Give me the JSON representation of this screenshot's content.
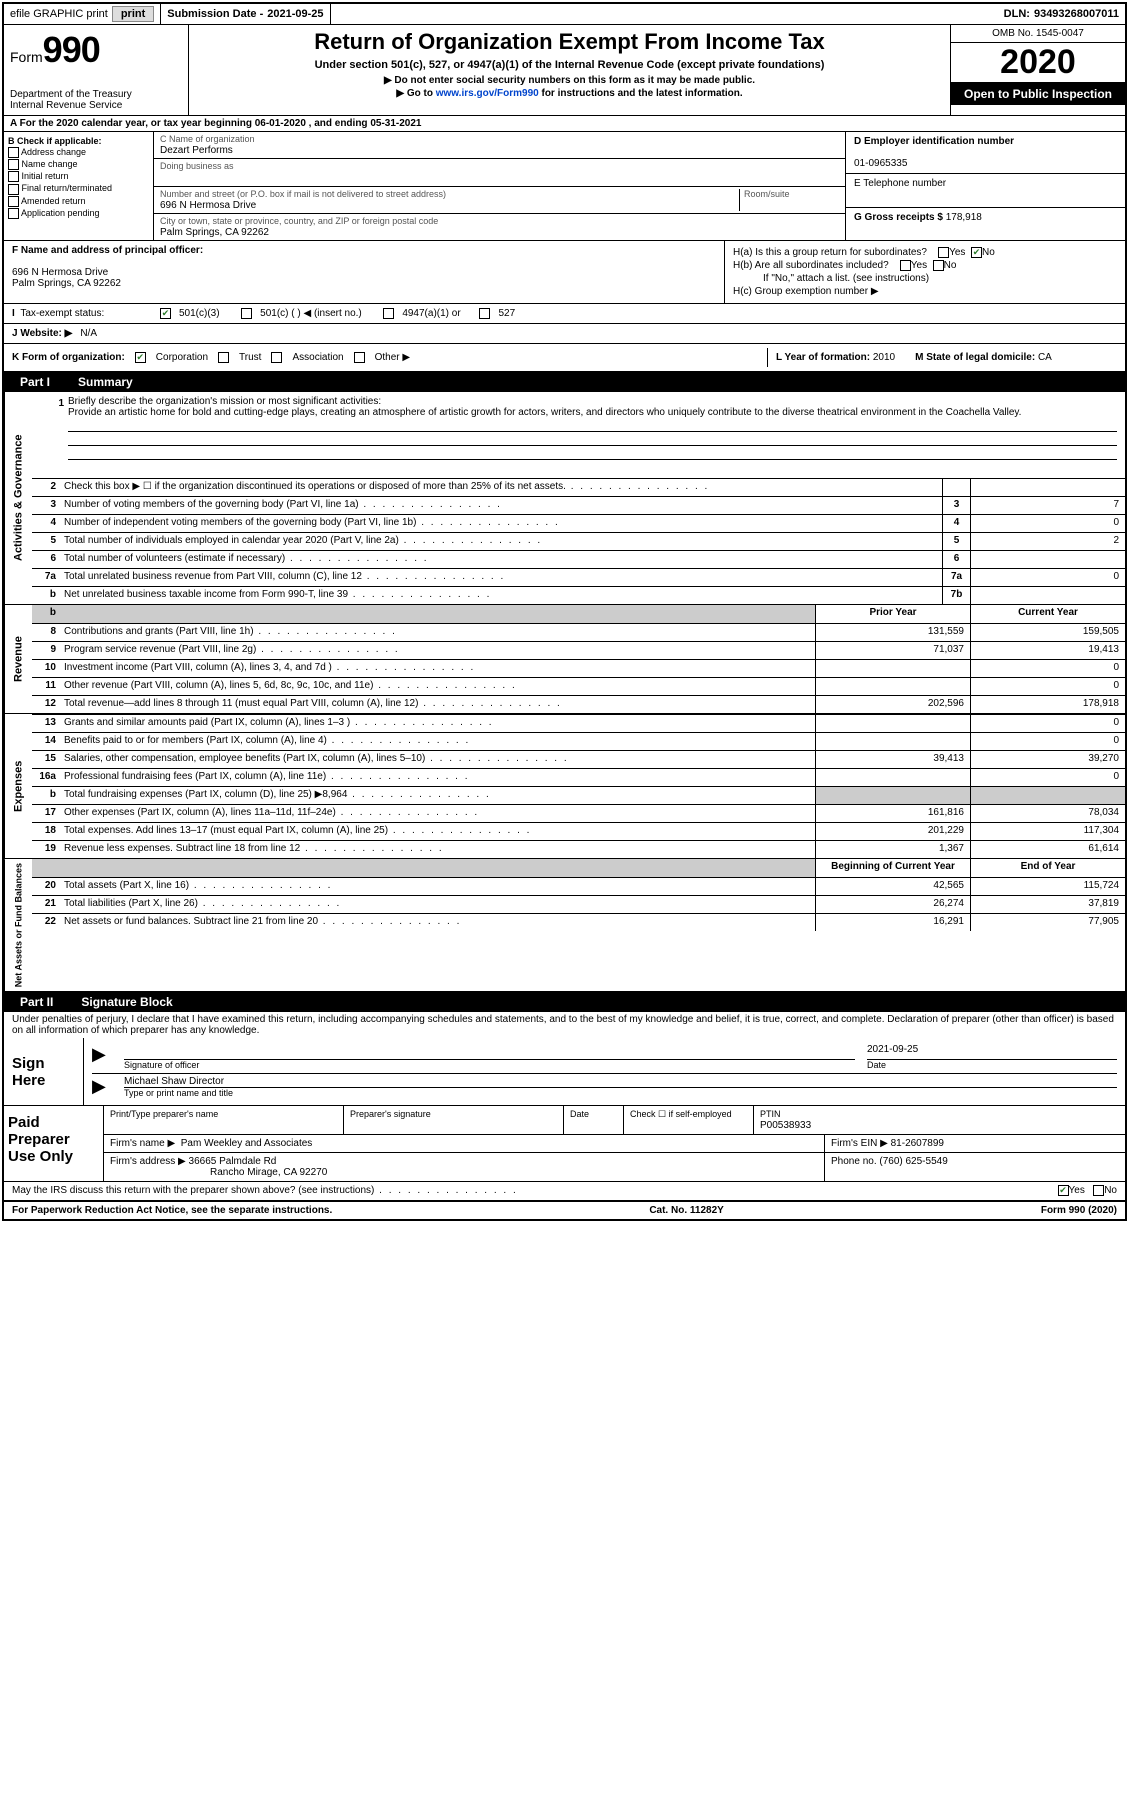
{
  "topbar": {
    "efile": "efile GRAPHIC print",
    "submission_label": "Submission Date - ",
    "submission_date": "2021-09-25",
    "dln_label": "DLN: ",
    "dln": "93493268007011"
  },
  "header": {
    "form_prefix": "Form",
    "form_number": "990",
    "dept": "Department of the Treasury\nInternal Revenue Service",
    "title": "Return of Organization Exempt From Income Tax",
    "subtitle": "Under section 501(c), 527, or 4947(a)(1) of the Internal Revenue Code (except private foundations)",
    "instr1": "▶ Do not enter social security numbers on this form as it may be made public.",
    "instr2_pre": "▶ Go to ",
    "instr2_link": "www.irs.gov/Form990",
    "instr2_post": " for instructions and the latest information.",
    "omb": "OMB No. 1545-0047",
    "tax_year": "2020",
    "inspection": "Open to Public Inspection"
  },
  "row_a": "A For the 2020 calendar year, or tax year beginning 06-01-2020    , and ending 05-31-2021",
  "section_b": {
    "header": "B Check if applicable:",
    "opts": [
      "Address change",
      "Name change",
      "Initial return",
      "Final return/terminated",
      "Amended return",
      "Application pending"
    ]
  },
  "section_c": {
    "name_label": "C Name of organization",
    "name": "Dezart Performs",
    "dba_label": "Doing business as",
    "addr_label": "Number and street (or P.O. box if mail is not delivered to street address)",
    "room_label": "Room/suite",
    "addr": "696 N Hermosa Drive",
    "city_label": "City or town, state or province, country, and ZIP or foreign postal code",
    "city": "Palm Springs, CA  92262"
  },
  "section_d": {
    "label": "D Employer identification number",
    "value": "01-0965335"
  },
  "section_e": {
    "label": "E Telephone number",
    "value": ""
  },
  "section_g": {
    "label": "G Gross receipts $ ",
    "value": "178,918"
  },
  "section_f": {
    "label": "F  Name and address of principal officer:",
    "addr1": "696 N Hermosa Drive",
    "addr2": "Palm Springs, CA  92262"
  },
  "section_h": {
    "a": "H(a)  Is this a group return for subordinates?",
    "b": "H(b)  Are all subordinates included?",
    "b_note": "If \"No,\" attach a list. (see instructions)",
    "c": "H(c)  Group exemption number ▶"
  },
  "tax_status": {
    "label": "Tax-exempt status:",
    "o1": "501(c)(3)",
    "o2": "501(c) (  ) ◀ (insert no.)",
    "o3": "4947(a)(1) or",
    "o4": "527"
  },
  "website": {
    "label": "J   Website: ▶",
    "value": "N/A"
  },
  "row_k": {
    "k": "K Form of organization:",
    "opts": [
      "Corporation",
      "Trust",
      "Association",
      "Other ▶"
    ],
    "l_label": "L Year of formation: ",
    "l_value": "2010",
    "m_label": "M State of legal domicile: ",
    "m_value": "CA"
  },
  "part1": {
    "label": "Part I",
    "title": "Summary"
  },
  "mission": {
    "num": "1",
    "label": "Briefly describe the organization's mission or most significant activities:",
    "text": "Provide an artistic home for bold and cutting-edge plays, creating an atmosphere of artistic growth for actors, writers, and directors who uniquely contribute to the diverse theatrical environment in the Coachella Valley."
  },
  "governance": {
    "side": "Activities & Governance",
    "rows": [
      {
        "n": "2",
        "label": "Check this box ▶ ☐  if the organization discontinued its operations or disposed of more than 25% of its net assets.",
        "box": "",
        "val": ""
      },
      {
        "n": "3",
        "label": "Number of voting members of the governing body (Part VI, line 1a)",
        "box": "3",
        "val": "7"
      },
      {
        "n": "4",
        "label": "Number of independent voting members of the governing body (Part VI, line 1b)",
        "box": "4",
        "val": "0"
      },
      {
        "n": "5",
        "label": "Total number of individuals employed in calendar year 2020 (Part V, line 2a)",
        "box": "5",
        "val": "2"
      },
      {
        "n": "6",
        "label": "Total number of volunteers (estimate if necessary)",
        "box": "6",
        "val": ""
      },
      {
        "n": "7a",
        "label": "Total unrelated business revenue from Part VIII, column (C), line 12",
        "box": "7a",
        "val": "0"
      },
      {
        "n": "b",
        "label": "Net unrelated business taxable income from Form 990-T, line 39",
        "box": "7b",
        "val": ""
      }
    ]
  },
  "revenue": {
    "side": "Revenue",
    "header": {
      "prior": "Prior Year",
      "curr": "Current Year"
    },
    "rows": [
      {
        "n": "8",
        "label": "Contributions and grants (Part VIII, line 1h)",
        "prior": "131,559",
        "curr": "159,505"
      },
      {
        "n": "9",
        "label": "Program service revenue (Part VIII, line 2g)",
        "prior": "71,037",
        "curr": "19,413"
      },
      {
        "n": "10",
        "label": "Investment income (Part VIII, column (A), lines 3, 4, and 7d )",
        "prior": "",
        "curr": "0"
      },
      {
        "n": "11",
        "label": "Other revenue (Part VIII, column (A), lines 5, 6d, 8c, 9c, 10c, and 11e)",
        "prior": "",
        "curr": "0"
      },
      {
        "n": "12",
        "label": "Total revenue—add lines 8 through 11 (must equal Part VIII, column (A), line 12)",
        "prior": "202,596",
        "curr": "178,918"
      }
    ]
  },
  "expenses": {
    "side": "Expenses",
    "rows": [
      {
        "n": "13",
        "label": "Grants and similar amounts paid (Part IX, column (A), lines 1–3 )",
        "prior": "",
        "curr": "0"
      },
      {
        "n": "14",
        "label": "Benefits paid to or for members (Part IX, column (A), line 4)",
        "prior": "",
        "curr": "0"
      },
      {
        "n": "15",
        "label": "Salaries, other compensation, employee benefits (Part IX, column (A), lines 5–10)",
        "prior": "39,413",
        "curr": "39,270"
      },
      {
        "n": "16a",
        "label": "Professional fundraising fees (Part IX, column (A), line 11e)",
        "prior": "",
        "curr": "0"
      },
      {
        "n": "b",
        "label": "Total fundraising expenses (Part IX, column (D), line 25) ▶8,964",
        "prior": "__SHADE__",
        "curr": "__SHADE__"
      },
      {
        "n": "17",
        "label": "Other expenses (Part IX, column (A), lines 11a–11d, 11f–24e)",
        "prior": "161,816",
        "curr": "78,034"
      },
      {
        "n": "18",
        "label": "Total expenses. Add lines 13–17 (must equal Part IX, column (A), line 25)",
        "prior": "201,229",
        "curr": "117,304"
      },
      {
        "n": "19",
        "label": "Revenue less expenses. Subtract line 18 from line 12",
        "prior": "1,367",
        "curr": "61,614"
      }
    ]
  },
  "netassets": {
    "side": "Net Assets or Fund Balances",
    "header": {
      "prior": "Beginning of Current Year",
      "curr": "End of Year"
    },
    "rows": [
      {
        "n": "20",
        "label": "Total assets (Part X, line 16)",
        "prior": "42,565",
        "curr": "115,724"
      },
      {
        "n": "21",
        "label": "Total liabilities (Part X, line 26)",
        "prior": "26,274",
        "curr": "37,819"
      },
      {
        "n": "22",
        "label": "Net assets or fund balances. Subtract line 21 from line 20",
        "prior": "16,291",
        "curr": "77,905"
      }
    ]
  },
  "part2": {
    "label": "Part II",
    "title": "Signature Block"
  },
  "penalty": "Under penalties of perjury, I declare that I have examined this return, including accompanying schedules and statements, and to the best of my knowledge and belief, it is true, correct, and complete. Declaration of preparer (other than officer) is based on all information of which preparer has any knowledge.",
  "sign": {
    "label": "Sign Here",
    "sig_label": "Signature of officer",
    "date_label": "Date",
    "date": "2021-09-25",
    "name": "Michael Shaw  Director",
    "name_label": "Type or print name and title"
  },
  "paid": {
    "label": "Paid Preparer Use Only",
    "h1": "Print/Type preparer's name",
    "h2": "Preparer's signature",
    "h3": "Date",
    "h4_pre": "Check ☐  if self-employed",
    "ptin_label": "PTIN",
    "ptin": "P00538933",
    "firm_name_label": "Firm's name     ▶",
    "firm_name": "Pam Weekley and Associates",
    "firm_ein_label": "Firm's EIN ▶",
    "firm_ein": "81-2607899",
    "firm_addr_label": "Firm's address ▶",
    "firm_addr1": "36665 Palmdale Rd",
    "firm_addr2": "Rancho Mirage, CA  92270",
    "phone_label": "Phone no. ",
    "phone": "(760) 625-5549"
  },
  "discuss": {
    "text": "May the IRS discuss this return with the preparer shown above? (see instructions)",
    "yes": "Yes",
    "no": "No"
  },
  "footer": {
    "left": "For Paperwork Reduction Act Notice, see the separate instructions.",
    "mid": "Cat. No. 11282Y",
    "right": "Form 990 (2020)"
  }
}
